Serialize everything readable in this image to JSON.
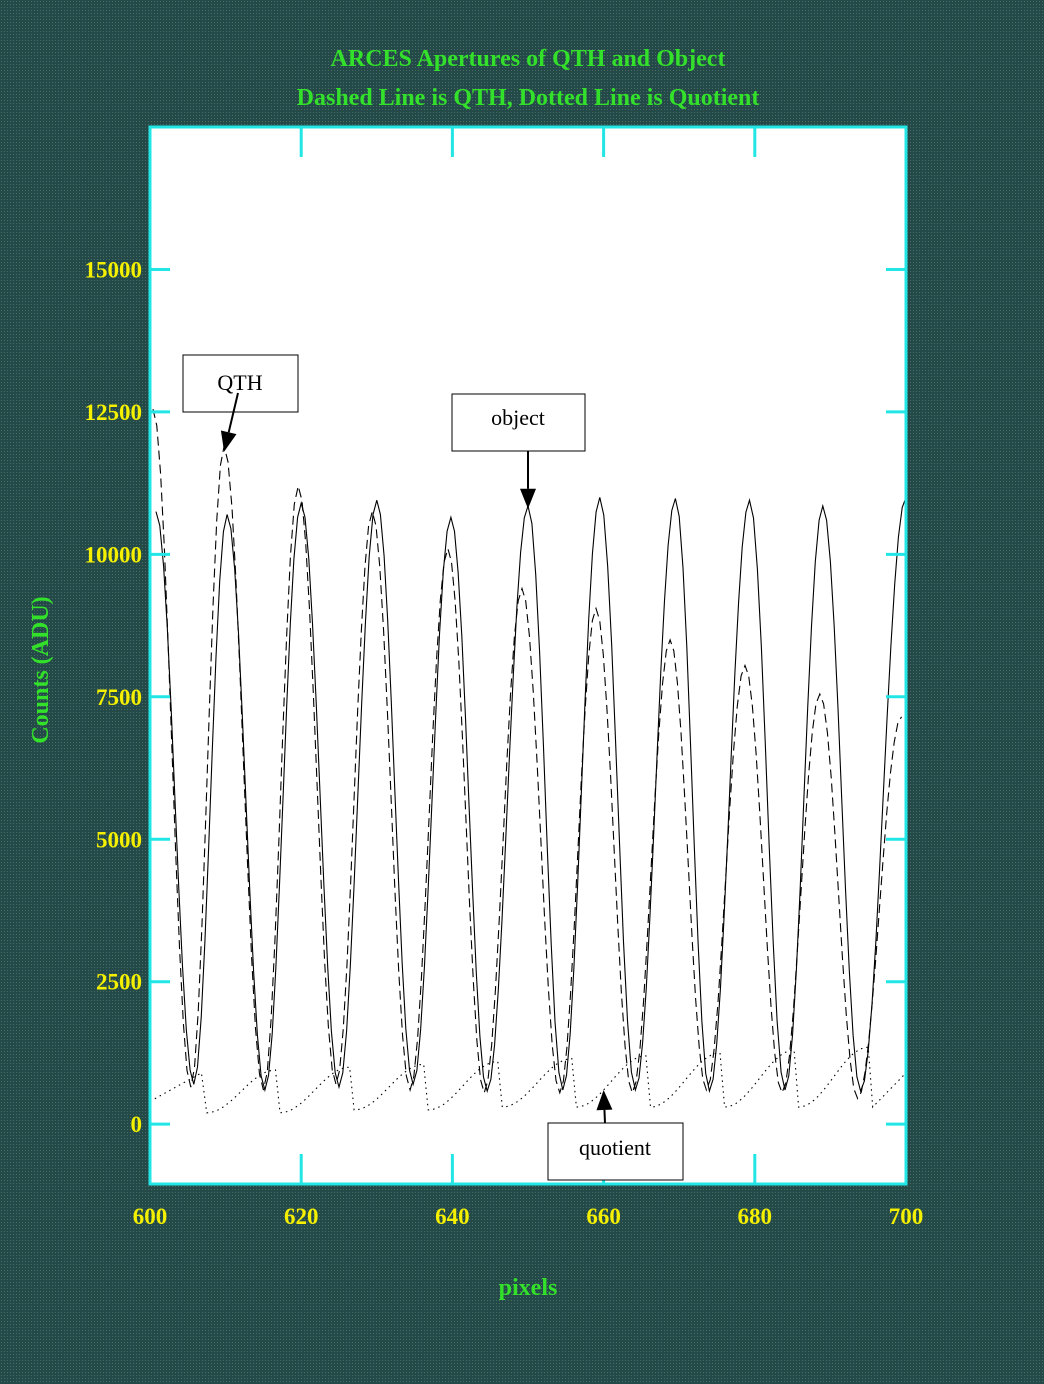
{
  "chart_data": {
    "type": "line",
    "title": "ARCES Apertures of QTH and Object",
    "subtitle": "Dashed Line is QTH, Dotted Line is Quotient",
    "xlabel": "pixels",
    "ylabel": "Counts (ADU)",
    "xlim": [
      600,
      700
    ],
    "ylim": [
      -1050,
      17500
    ],
    "x_ticks": [
      600,
      620,
      640,
      660,
      680,
      700
    ],
    "y_ticks": [
      0,
      2500,
      5000,
      7500,
      10000,
      12500,
      15000
    ],
    "grid": false,
    "colors": {
      "frame": "#22e6e6",
      "text_green": "#33e02a",
      "text_yellow": "#f4f000",
      "plot_bg": "#ffffff",
      "lines": "#000000"
    },
    "series": [
      {
        "name": "object",
        "style": "solid",
        "peaks": [
          [
            600.8,
            10750
          ],
          [
            610.2,
            10700
          ],
          [
            620,
            10900
          ],
          [
            630,
            10950
          ],
          [
            639.8,
            10650
          ],
          [
            650,
            10850
          ],
          [
            659.5,
            11000
          ],
          [
            669.5,
            10980
          ],
          [
            679.3,
            10950
          ],
          [
            689,
            10850
          ],
          [
            700,
            11000
          ]
        ],
        "troughs": [
          [
            605.8,
            700
          ],
          [
            615.2,
            600
          ],
          [
            625,
            650
          ],
          [
            634.8,
            700
          ],
          [
            644.6,
            580
          ],
          [
            654.6,
            600
          ],
          [
            664.2,
            600
          ],
          [
            674,
            580
          ],
          [
            684,
            600
          ],
          [
            694,
            580
          ]
        ]
      },
      {
        "name": "QTH",
        "style": "dashed",
        "peaks": [
          [
            600.4,
            12550
          ],
          [
            609.8,
            11900
          ],
          [
            619.6,
            11200
          ],
          [
            629.4,
            10750
          ],
          [
            639.4,
            10100
          ],
          [
            649.2,
            9400
          ],
          [
            659,
            9050
          ],
          [
            668.8,
            8500
          ],
          [
            678.7,
            8050
          ],
          [
            688.6,
            7550
          ],
          [
            699.4,
            7150
          ]
        ],
        "troughs": [
          [
            605.4,
            650
          ],
          [
            615,
            600
          ],
          [
            624.6,
            700
          ],
          [
            634.4,
            600
          ],
          [
            644.2,
            550
          ],
          [
            654.2,
            550
          ],
          [
            663.8,
            550
          ],
          [
            673.6,
            600
          ],
          [
            683.6,
            550
          ],
          [
            693.6,
            450
          ]
        ]
      },
      {
        "name": "quotient",
        "style": "dotted",
        "peaks": [
          [
            606.8,
            900
          ],
          [
            616.6,
            950
          ],
          [
            626.4,
            1000
          ],
          [
            636.2,
            1050
          ],
          [
            646,
            1100
          ],
          [
            655.8,
            1150
          ],
          [
            665.6,
            1200
          ],
          [
            675.4,
            1250
          ],
          [
            685.2,
            1300
          ],
          [
            695,
            1350
          ]
        ],
        "troughs": [
          [
            607.5,
            200
          ],
          [
            617.2,
            200
          ],
          [
            627,
            250
          ],
          [
            636.8,
            250
          ],
          [
            646.6,
            300
          ],
          [
            656.4,
            300
          ],
          [
            666.2,
            300
          ],
          [
            676,
            300
          ],
          [
            685.8,
            300
          ],
          [
            695.6,
            300
          ]
        ],
        "start": [
          600,
          400
        ],
        "end": [
          700,
          900
        ]
      }
    ],
    "annotations": [
      {
        "label": "QTH",
        "arrow_to": [
          609.8,
          11800
        ]
      },
      {
        "label": "object",
        "arrow_to": [
          650,
          10800
        ]
      },
      {
        "label": "quotient",
        "arrow_to": [
          660,
          600
        ]
      }
    ]
  }
}
